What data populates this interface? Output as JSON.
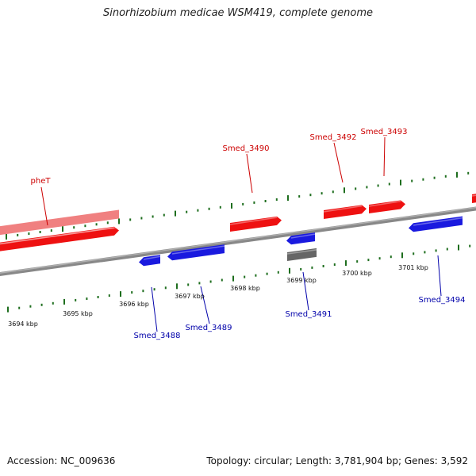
{
  "title": "Sinorhizobium medicae WSM419, complete genome",
  "footer": {
    "accession": "Accession: NC_009636",
    "topology": "Topology: circular; Length: 3,781,904 bp; Genes: 3,592"
  },
  "colors": {
    "forward_gene": "#ee1111",
    "forward_gene_light": "#f08080",
    "reverse_gene": "#1a1adf",
    "other_feature": "#666666",
    "backbone": "#888888",
    "tick": "#1e6e1e",
    "forward_label": "#cc0000",
    "reverse_label": "#0000aa"
  },
  "scale_labels": [
    "3694 kbp",
    "3695 kbp",
    "3696 kbp",
    "3697 kbp",
    "3698 kbp",
    "3699 kbp",
    "3700 kbp",
    "3701 kbp"
  ],
  "genes_forward": [
    "pheT",
    "Smed_3490",
    "Smed_3492",
    "Smed_3493"
  ],
  "genes_reverse": [
    "Smed_3488",
    "Smed_3489",
    "Smed_3491",
    "Smed_3494"
  ]
}
